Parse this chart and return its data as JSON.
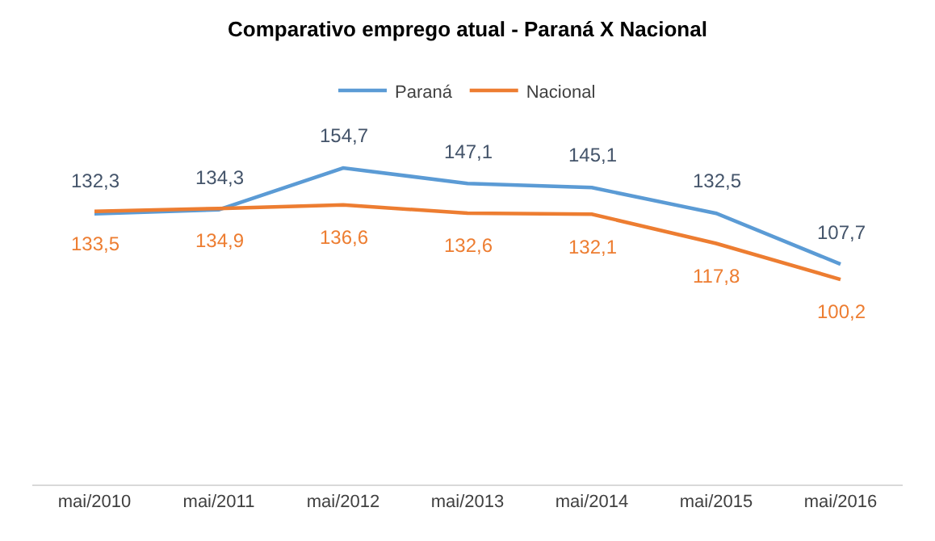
{
  "chart_data": {
    "type": "line",
    "title": "Comparativo emprego atual - Paraná X Nacional",
    "categories": [
      "mai/2010",
      "mai/2011",
      "mai/2012",
      "mai/2013",
      "mai/2014",
      "mai/2015",
      "mai/2016"
    ],
    "legend": "top",
    "marker": "none",
    "line_style": "solid",
    "tick_labels": "x",
    "series": [
      {
        "name": "Paraná",
        "color": "#5b9bd5",
        "values": [
          132.3,
          134.3,
          154.7,
          147.1,
          145.1,
          132.5,
          107.7
        ],
        "value_labels": [
          "132,3",
          "134,3",
          "154,7",
          "147,1",
          "145,1",
          "132,5",
          "107,7"
        ]
      },
      {
        "name": "Nacional",
        "color": "#ed7d31",
        "values": [
          133.5,
          134.9,
          136.6,
          132.6,
          132.1,
          117.8,
          100.2
        ],
        "value_labels": [
          "133,5",
          "134,9",
          "136,6",
          "132,6",
          "132,1",
          "117,8",
          "100,2"
        ]
      }
    ]
  }
}
